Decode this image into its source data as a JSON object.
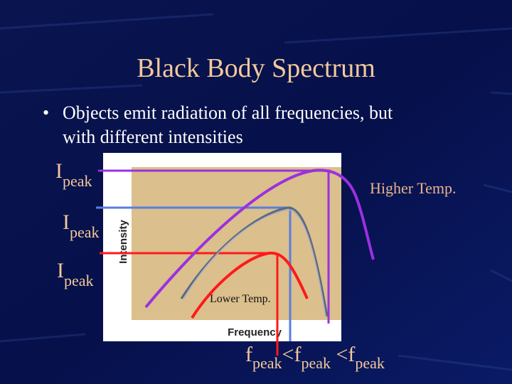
{
  "title": "Black Body Spectrum",
  "bullet": {
    "marker": "•",
    "lines": [
      "Objects emit radiation of all frequencies, but",
      "with different intensities"
    ]
  },
  "diagram": {
    "y_axis_label": "Intensity",
    "x_axis_label": "Frequency",
    "higher_label": "Higher Temp.",
    "lower_label": "Lower Temp.",
    "ipeak_labels": [
      {
        "symbol": "I",
        "subscript": "peak"
      },
      {
        "symbol": "I",
        "subscript": "peak"
      },
      {
        "symbol": "I",
        "subscript": "peak"
      }
    ],
    "fpeak_labels": [
      {
        "symbol": "f",
        "subscript": "peak"
      },
      {
        "symbol": "<f",
        "subscript": "peak"
      },
      {
        "symbol": " <f",
        "subscript": "peak"
      }
    ]
  }
}
